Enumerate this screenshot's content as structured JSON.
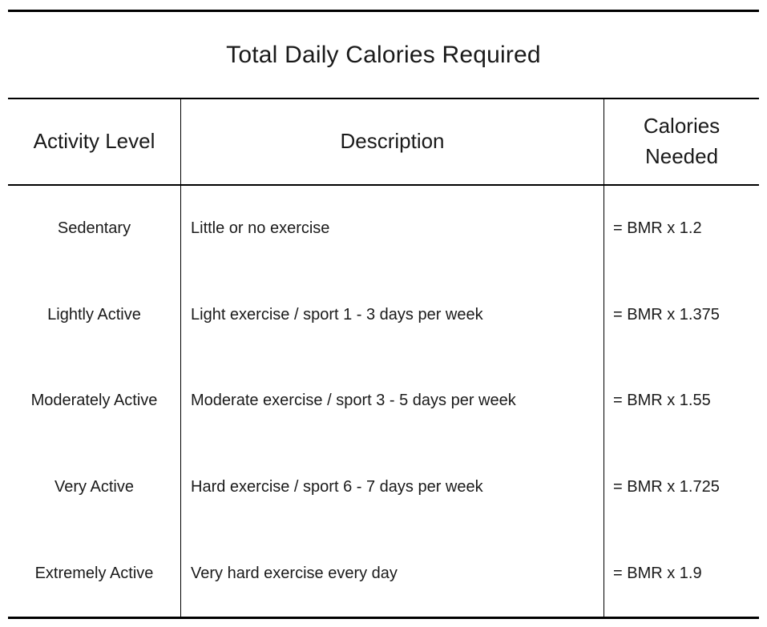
{
  "title": "Total Daily Calories Required",
  "table": {
    "headers": {
      "activity_level": "Activity Level",
      "description": "Description",
      "calories_needed": "Calories Needed"
    },
    "rows": [
      {
        "activity_level": "Sedentary",
        "description": "Little or no exercise",
        "calories_needed": "= BMR x 1.2"
      },
      {
        "activity_level": "Lightly Active",
        "description": "Light exercise / sport 1 - 3 days per week",
        "calories_needed": "= BMR x 1.375"
      },
      {
        "activity_level": "Moderately Active",
        "description": "Moderate exercise / sport 3 - 5 days per week",
        "calories_needed": "= BMR x 1.55"
      },
      {
        "activity_level": "Very Active",
        "description": "Hard exercise / sport 6 - 7 days per week",
        "calories_needed": "= BMR x 1.725"
      },
      {
        "activity_level": "Extremely Active",
        "description": "Very hard exercise every day",
        "calories_needed": "= BMR x 1.9"
      }
    ]
  },
  "colors": {
    "text": "#1a1a1a",
    "line": "#000000",
    "background": "#ffffff"
  }
}
